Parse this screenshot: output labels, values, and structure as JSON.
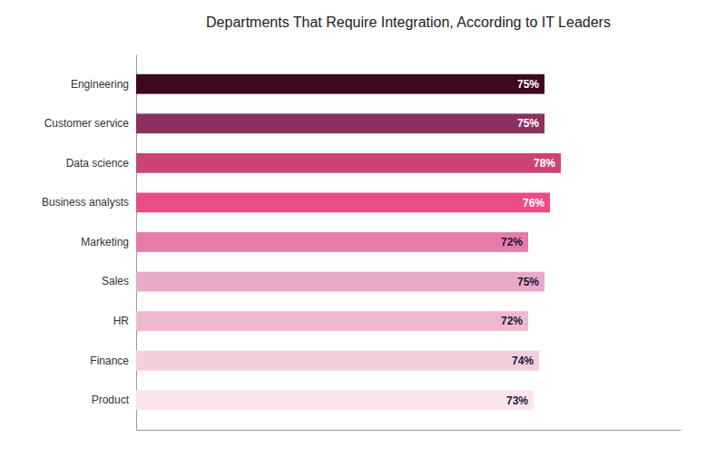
{
  "chart_data": {
    "type": "bar",
    "orientation": "horizontal",
    "title": "Departments That Require Integration, According to IT Leaders",
    "categories": [
      "Engineering",
      "Customer service",
      "Data science",
      "Business analysts",
      "Marketing",
      "Sales",
      "HR",
      "Finance",
      "Product"
    ],
    "values": [
      75,
      75,
      78,
      76,
      72,
      75,
      72,
      74,
      73
    ],
    "value_labels": [
      "75%",
      "75%",
      "78%",
      "76%",
      "72%",
      "75%",
      "72%",
      "74%",
      "73%"
    ],
    "colors": [
      "#3d0820",
      "#8b3060",
      "#cc4477",
      "#e84d85",
      "#e87aaa",
      "#e8a8c8",
      "#f0b8d0",
      "#f5cede",
      "#fce4ed"
    ],
    "xlim": [
      0,
      100
    ],
    "data_labels": true,
    "tick_labels": "y",
    "grid": false
  }
}
